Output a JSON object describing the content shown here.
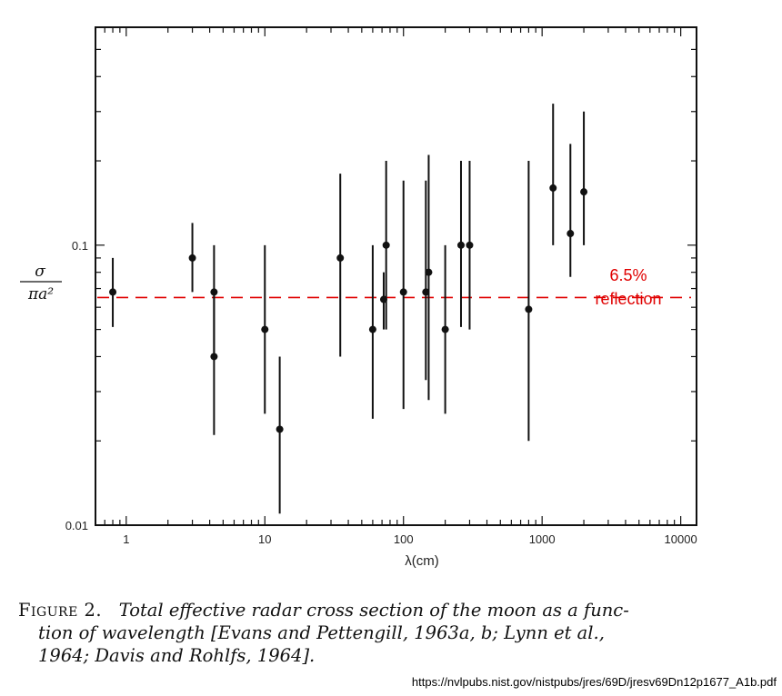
{
  "chart_data": {
    "type": "scatter",
    "xscale": "log",
    "yscale": "log",
    "xlim": [
      0.6,
      13000
    ],
    "ylim": [
      0.01,
      0.6
    ],
    "xticks": [
      {
        "value": 1,
        "label": "1"
      },
      {
        "value": 10,
        "label": "10"
      },
      {
        "value": 100,
        "label": "100"
      },
      {
        "value": 1000,
        "label": "1000"
      },
      {
        "value": 10000,
        "label": "10000"
      }
    ],
    "yticks": [
      {
        "value": 0.01,
        "label": "0.01"
      },
      {
        "value": 0.1,
        "label": "0.1"
      }
    ],
    "xlabel": "λ(cm)",
    "ylabel_numerator": "σ",
    "ylabel_denominator": "πa²",
    "points": [
      {
        "x": 0.8,
        "y": 0.068,
        "ylow": 0.051,
        "yhigh": 0.09
      },
      {
        "x": 3.0,
        "y": 0.09,
        "ylow": 0.068,
        "yhigh": 0.12
      },
      {
        "x": 4.3,
        "y": 0.068,
        "ylow": 0.04,
        "yhigh": 0.1
      },
      {
        "x": 4.3,
        "y": 0.04,
        "ylow": 0.021,
        "yhigh": 0.068
      },
      {
        "x": 10,
        "y": 0.05,
        "ylow": 0.025,
        "yhigh": 0.1
      },
      {
        "x": 12.8,
        "y": 0.022,
        "ylow": 0.011,
        "yhigh": 0.04
      },
      {
        "x": 35,
        "y": 0.09,
        "ylow": 0.04,
        "yhigh": 0.18
      },
      {
        "x": 60,
        "y": 0.05,
        "ylow": 0.024,
        "yhigh": 0.1
      },
      {
        "x": 72,
        "y": 0.064,
        "ylow": 0.05,
        "yhigh": 0.08
      },
      {
        "x": 75,
        "y": 0.1,
        "ylow": 0.05,
        "yhigh": 0.2
      },
      {
        "x": 100,
        "y": 0.068,
        "ylow": 0.026,
        "yhigh": 0.17
      },
      {
        "x": 145,
        "y": 0.068,
        "ylow": 0.033,
        "yhigh": 0.17
      },
      {
        "x": 152,
        "y": 0.08,
        "ylow": 0.028,
        "yhigh": 0.21
      },
      {
        "x": 200,
        "y": 0.05,
        "ylow": 0.025,
        "yhigh": 0.1
      },
      {
        "x": 260,
        "y": 0.1,
        "ylow": 0.051,
        "yhigh": 0.2
      },
      {
        "x": 300,
        "y": 0.1,
        "ylow": 0.05,
        "yhigh": 0.2
      },
      {
        "x": 800,
        "y": 0.059,
        "ylow": 0.02,
        "yhigh": 0.2
      },
      {
        "x": 1200,
        "y": 0.16,
        "ylow": 0.1,
        "yhigh": 0.32
      },
      {
        "x": 1600,
        "y": 0.11,
        "ylow": 0.077,
        "yhigh": 0.23
      },
      {
        "x": 2000,
        "y": 0.155,
        "ylow": 0.1,
        "yhigh": 0.3
      }
    ],
    "reference_line": {
      "y": 0.065,
      "label_line1": "6.5%",
      "label_line2": "reflection",
      "color": "#e00000",
      "style": "dashed"
    },
    "marker_color": "#111111",
    "grid": false
  },
  "caption": {
    "figure_label": "Figure 2.",
    "line1": "Total effective radar cross section of the moon as a func-",
    "line2": "tion of wavelength [Evans and Pettengill, 1963a, b; Lynn et al.,",
    "line3": "1964; Davis and Rohlfs, 1964]."
  },
  "source_url": "https://nvlpubs.nist.gov/nistpubs/jres/69D/jresv69Dn12p1677_A1b.pdf"
}
